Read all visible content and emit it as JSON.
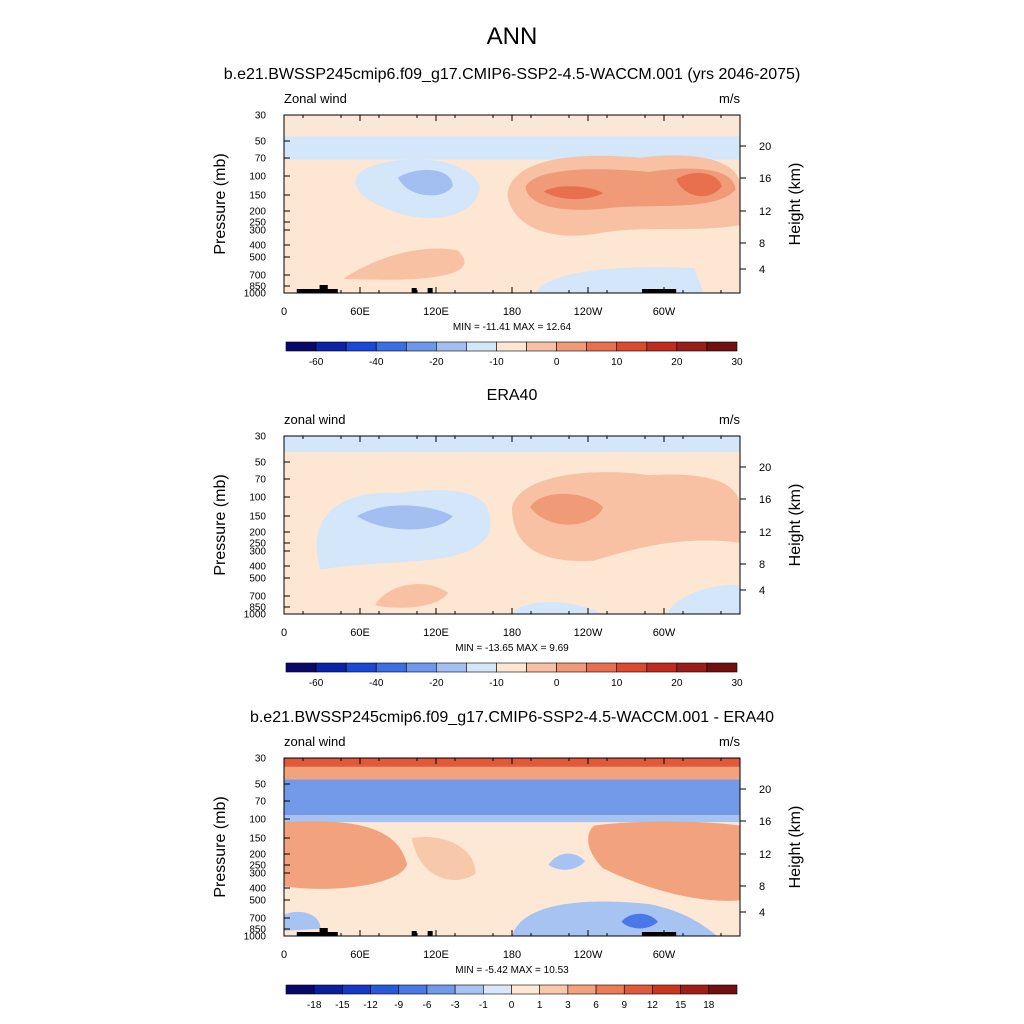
{
  "figure": {
    "title": "ANN",
    "subtitle": "b.e21.BWSSP245cmip6.f09_g17.CMIP6-SSP2-4.5-WACCM.001 (yrs 2046-2075)"
  },
  "chart_data": [
    {
      "type": "heatmap",
      "panel_title": "",
      "left_label": "Zonal wind",
      "right_label": "m/s",
      "ylabel": "Pressure (mb)",
      "ylabel_right": "Height (km)",
      "x_ticks": [
        "0",
        "60E",
        "120E",
        "180",
        "120W",
        "60W"
      ],
      "y_ticks": [
        "30",
        "50",
        "70",
        "100",
        "150",
        "200",
        "250",
        "300",
        "400",
        "500",
        "700",
        "850",
        "1000"
      ],
      "height_ticks": [
        "20",
        "16",
        "12",
        "8",
        "4"
      ],
      "stats": "MIN = -11.41  MAX =  12.64",
      "min": -11.41,
      "max": 12.64,
      "colorbar": {
        "levels": [
          "-60",
          "-40",
          "-20",
          "-10",
          "0",
          "10",
          "20",
          "30"
        ],
        "colors": [
          "#08086b",
          "#0a24a8",
          "#1b48d6",
          "#3c6ee6",
          "#6e98ea",
          "#a3bff2",
          "#d4e6fa",
          "#fde6d2",
          "#f8c1a3",
          "#f09a78",
          "#e8704e",
          "#dc4a2e",
          "#c02a1f",
          "#9a1d18",
          "#701010"
        ]
      }
    },
    {
      "type": "heatmap",
      "panel_title": "ERA40",
      "left_label": "zonal wind",
      "right_label": "m/s",
      "ylabel": "Pressure (mb)",
      "ylabel_right": "Height (km)",
      "x_ticks": [
        "0",
        "60E",
        "120E",
        "180",
        "120W",
        "60W"
      ],
      "y_ticks": [
        "30",
        "50",
        "70",
        "100",
        "150",
        "200",
        "250",
        "300",
        "400",
        "500",
        "700",
        "850",
        "1000"
      ],
      "height_ticks": [
        "20",
        "16",
        "12",
        "8",
        "4"
      ],
      "stats": "MIN = -13.65  MAX =   9.69",
      "min": -13.65,
      "max": 9.69,
      "colorbar": {
        "levels": [
          "-60",
          "-40",
          "-20",
          "-10",
          "0",
          "10",
          "20",
          "30"
        ],
        "colors": [
          "#08086b",
          "#0a24a8",
          "#1b48d6",
          "#3c6ee6",
          "#6e98ea",
          "#a3bff2",
          "#d4e6fa",
          "#fde6d2",
          "#f8c1a3",
          "#f09a78",
          "#e8704e",
          "#dc4a2e",
          "#c02a1f",
          "#9a1d18",
          "#701010"
        ]
      }
    },
    {
      "type": "heatmap",
      "panel_title": "b.e21.BWSSP245cmip6.f09_g17.CMIP6-SSP2-4.5-WACCM.001 - ERA40",
      "left_label": "zonal wind",
      "right_label": "m/s",
      "ylabel": "Pressure (mb)",
      "ylabel_right": "Height (km)",
      "x_ticks": [
        "0",
        "60E",
        "120E",
        "180",
        "120W",
        "60W"
      ],
      "y_ticks": [
        "30",
        "50",
        "70",
        "100",
        "150",
        "200",
        "250",
        "300",
        "400",
        "500",
        "700",
        "850",
        "1000"
      ],
      "height_ticks": [
        "20",
        "16",
        "12",
        "8",
        "4"
      ],
      "stats": "MIN =  -5.42  MAX =  10.53",
      "min": -5.42,
      "max": 10.53,
      "colorbar": {
        "levels": [
          "-18",
          "-15",
          "-12",
          "-9",
          "-6",
          "-3",
          "-1",
          "0",
          "1",
          "3",
          "6",
          "9",
          "12",
          "15",
          "18"
        ],
        "colors": [
          "#08086b",
          "#0a1f9e",
          "#1538c4",
          "#2a58dc",
          "#4a78e6",
          "#739ae9",
          "#a6c3f2",
          "#d8e8fa",
          "#fde8d6",
          "#f8c8aa",
          "#f2a37e",
          "#ea7c56",
          "#e2583a",
          "#c8361f",
          "#a01c16",
          "#701010"
        ]
      }
    }
  ]
}
